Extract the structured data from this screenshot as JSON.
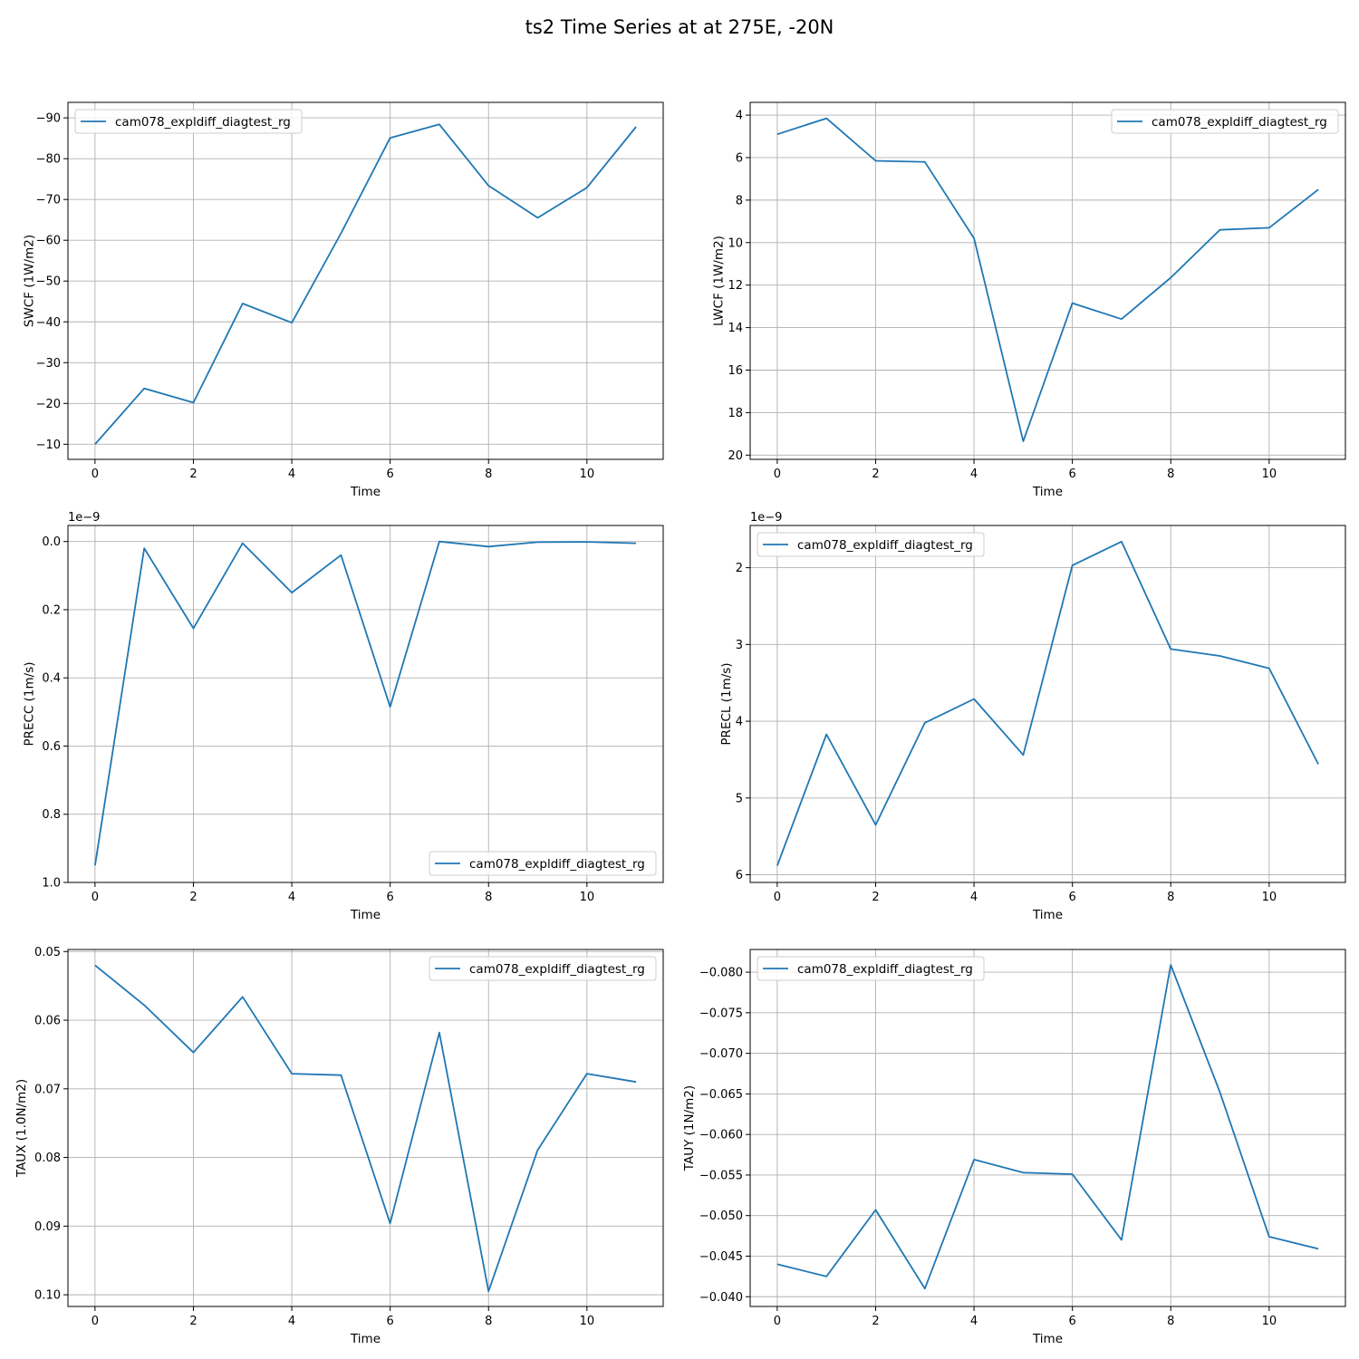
{
  "figure": {
    "title": "ts2 Time Series at at 275E, -20N",
    "line_color": "#1f77b4"
  },
  "chart_data": [
    {
      "type": "line",
      "xlabel": "Time",
      "ylabel": "SWCF (1W/m2)",
      "x": [
        0,
        1,
        2,
        3,
        4,
        5,
        6,
        7,
        8,
        9,
        10,
        11
      ],
      "series": [
        {
          "name": "cam078_expldiff_diagtest_rg",
          "values": [
            -10,
            -23.7,
            -20.2,
            -44.5,
            -39.8,
            -61.7,
            -85.1,
            -88.4,
            -73.4,
            -65.5,
            -72.9,
            -87.8
          ]
        }
      ],
      "xlim": [
        -0.55,
        11.55
      ],
      "ylim": [
        -6.3,
        -93.8
      ],
      "xticks": [
        0,
        2,
        4,
        6,
        8,
        10
      ],
      "xtick_labels": [
        "0",
        "2",
        "4",
        "6",
        "8",
        "10"
      ],
      "yticks": [
        -10,
        -20,
        -30,
        -40,
        -50,
        -60,
        -70,
        -80,
        -90
      ],
      "ytick_labels": [
        "−10",
        "−20",
        "−30",
        "−40",
        "−50",
        "−60",
        "−70",
        "−80",
        "−90"
      ],
      "offset_text": "",
      "legend": "upper left",
      "grid": true
    },
    {
      "type": "line",
      "xlabel": "Time",
      "ylabel": "LWCF (1W/m2)",
      "x": [
        0,
        1,
        2,
        3,
        4,
        5,
        6,
        7,
        8,
        9,
        10,
        11
      ],
      "series": [
        {
          "name": "cam078_expldiff_diagtest_rg",
          "values": [
            4.9,
            4.15,
            6.15,
            6.2,
            9.8,
            19.35,
            12.85,
            13.6,
            11.65,
            9.4,
            9.3,
            7.5
          ]
        }
      ],
      "xlim": [
        -0.55,
        11.55
      ],
      "ylim": [
        20.2,
        3.4
      ],
      "xticks": [
        0,
        2,
        4,
        6,
        8,
        10
      ],
      "xtick_labels": [
        "0",
        "2",
        "4",
        "6",
        "8",
        "10"
      ],
      "yticks": [
        4,
        6,
        8,
        10,
        12,
        14,
        16,
        18,
        20
      ],
      "ytick_labels": [
        "4",
        "6",
        "8",
        "10",
        "12",
        "14",
        "16",
        "18",
        "20"
      ],
      "offset_text": "",
      "legend": "upper right",
      "grid": true
    },
    {
      "type": "line",
      "xlabel": "Time",
      "ylabel": "PRECC (1m/s)",
      "x": [
        0,
        1,
        2,
        3,
        4,
        5,
        6,
        7,
        8,
        9,
        10,
        11
      ],
      "series": [
        {
          "name": "cam078_expldiff_diagtest_rg",
          "values": [
            0.95,
            0.02,
            0.255,
            0.005,
            0.15,
            0.04,
            0.485,
            0.0,
            0.015,
            0.002,
            0.001,
            0.005
          ]
        }
      ],
      "xlim": [
        -0.55,
        11.55
      ],
      "ylim": [
        1.0,
        -0.047
      ],
      "xticks": [
        0,
        2,
        4,
        6,
        8,
        10
      ],
      "xtick_labels": [
        "0",
        "2",
        "4",
        "6",
        "8",
        "10"
      ],
      "yticks": [
        0.0,
        0.2,
        0.4,
        0.6,
        0.8,
        1.0
      ],
      "ytick_labels": [
        "0.0",
        "0.2",
        "0.4",
        "0.6",
        "0.8",
        "1.0"
      ],
      "offset_text": "1e−9",
      "legend": "lower right",
      "grid": true
    },
    {
      "type": "line",
      "xlabel": "Time",
      "ylabel": "PRECL (1m/s)",
      "x": [
        0,
        1,
        2,
        3,
        4,
        5,
        6,
        7,
        8,
        9,
        10,
        11
      ],
      "series": [
        {
          "name": "cam078_expldiff_diagtest_rg",
          "values": [
            5.88,
            4.17,
            5.35,
            4.02,
            3.71,
            4.44,
            1.97,
            1.66,
            3.06,
            3.15,
            3.31,
            4.56
          ]
        }
      ],
      "xlim": [
        -0.55,
        11.55
      ],
      "ylim": [
        6.1,
        1.45
      ],
      "xticks": [
        0,
        2,
        4,
        6,
        8,
        10
      ],
      "xtick_labels": [
        "0",
        "2",
        "4",
        "6",
        "8",
        "10"
      ],
      "yticks": [
        2,
        3,
        4,
        5,
        6
      ],
      "ytick_labels": [
        "2",
        "3",
        "4",
        "5",
        "6"
      ],
      "offset_text": "1e−9",
      "legend": "upper left",
      "grid": true
    },
    {
      "type": "line",
      "xlabel": "Time",
      "ylabel": "TAUX (1.0N/m2)",
      "x": [
        0,
        1,
        2,
        3,
        4,
        5,
        6,
        7,
        8,
        9,
        10,
        11
      ],
      "series": [
        {
          "name": "cam078_expldiff_diagtest_rg",
          "values": [
            0.052,
            0.0578,
            0.0647,
            0.0566,
            0.0678,
            0.068,
            0.0896,
            0.0618,
            0.0995,
            0.0789,
            0.0678,
            0.069
          ]
        }
      ],
      "xlim": [
        -0.55,
        11.55
      ],
      "ylim": [
        0.1017,
        0.0497
      ],
      "xticks": [
        0,
        2,
        4,
        6,
        8,
        10
      ],
      "xtick_labels": [
        "0",
        "2",
        "4",
        "6",
        "8",
        "10"
      ],
      "yticks": [
        0.05,
        0.06,
        0.07,
        0.08,
        0.09,
        0.1
      ],
      "ytick_labels": [
        "0.05",
        "0.06",
        "0.07",
        "0.08",
        "0.09",
        "0.10"
      ],
      "offset_text": "",
      "legend": "upper right",
      "grid": true
    },
    {
      "type": "line",
      "xlabel": "Time",
      "ylabel": "TAUY (1N/m2)",
      "x": [
        0,
        1,
        2,
        3,
        4,
        5,
        6,
        7,
        8,
        9,
        10,
        11
      ],
      "series": [
        {
          "name": "cam078_expldiff_diagtest_rg",
          "values": [
            -0.044,
            -0.0425,
            -0.0507,
            -0.041,
            -0.0569,
            -0.0553,
            -0.0551,
            -0.047,
            -0.0809,
            -0.0652,
            -0.0474,
            -0.0459
          ]
        }
      ],
      "xlim": [
        -0.55,
        11.55
      ],
      "ylim": [
        -0.0388,
        -0.0828
      ],
      "xticks": [
        0,
        2,
        4,
        6,
        8,
        10
      ],
      "xtick_labels": [
        "0",
        "2",
        "4",
        "6",
        "8",
        "10"
      ],
      "yticks": [
        -0.04,
        -0.045,
        -0.05,
        -0.055,
        -0.06,
        -0.065,
        -0.07,
        -0.075,
        -0.08
      ],
      "ytick_labels": [
        "−0.040",
        "−0.045",
        "−0.050",
        "−0.055",
        "−0.060",
        "−0.065",
        "−0.070",
        "−0.075",
        "−0.080"
      ],
      "offset_text": "",
      "legend": "upper left",
      "grid": true
    }
  ]
}
